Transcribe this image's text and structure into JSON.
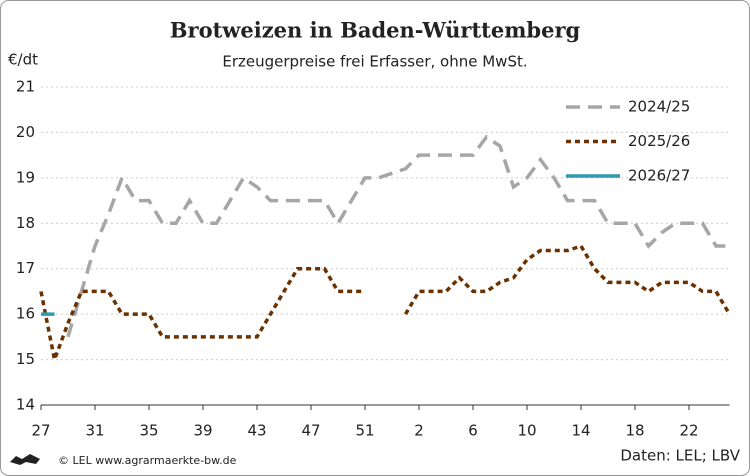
{
  "chart_data": {
    "type": "line",
    "title": "Brotweizen in Baden-Württemberg",
    "subtitle": "Erzeugerpreise frei Erfasser, ohne MwSt.",
    "y_label": "€/dt",
    "source": "Daten: LEL; LBV",
    "credit": "© LEL www.agrarmaerkte-bw.de",
    "categories": [
      "27",
      null,
      null,
      null,
      "31",
      null,
      null,
      null,
      "35",
      null,
      null,
      null,
      "39",
      null,
      null,
      null,
      "43",
      null,
      null,
      null,
      "47",
      null,
      null,
      null,
      "51",
      null,
      null,
      null,
      "2",
      null,
      null,
      null,
      "6",
      null,
      null,
      null,
      "10",
      null,
      null,
      null,
      "14",
      null,
      null,
      null,
      "18",
      null,
      null,
      null,
      "22",
      null,
      null,
      null
    ],
    "series": [
      {
        "name": "2024/25",
        "color": "#a6a6a6",
        "dash": "long",
        "values": [
          null,
          null,
          15.5,
          16.5,
          17.5,
          18.2,
          19.0,
          18.5,
          18.5,
          18.0,
          18.0,
          18.5,
          18.0,
          18.0,
          18.5,
          19.0,
          18.8,
          18.5,
          18.5,
          18.5,
          18.5,
          18.5,
          18.0,
          18.5,
          19.0,
          19.0,
          19.1,
          19.2,
          19.5,
          19.5,
          19.5,
          19.5,
          19.5,
          19.9,
          19.7,
          18.8,
          19.0,
          19.4,
          19.0,
          18.5,
          18.5,
          18.5,
          18.0,
          18.0,
          18.0,
          17.5,
          17.8,
          18.0,
          18.0,
          18.0,
          17.5,
          17.5
        ]
      },
      {
        "name": "2025/26",
        "color": "#6b3100",
        "dash": "dot",
        "values": [
          16.5,
          15.0,
          15.8,
          16.5,
          16.5,
          16.5,
          16.0,
          16.0,
          16.0,
          15.5,
          15.5,
          15.5,
          15.5,
          15.5,
          15.5,
          15.5,
          15.5,
          16.0,
          16.5,
          17.0,
          17.0,
          17.0,
          16.5,
          16.5,
          16.5,
          null,
          null,
          16.0,
          16.5,
          16.5,
          16.5,
          16.8,
          16.5,
          16.5,
          16.7,
          16.8,
          17.2,
          17.4,
          17.4,
          17.4,
          17.5,
          17.0,
          16.7,
          16.7,
          16.7,
          16.5,
          16.7,
          16.7,
          16.7,
          16.5,
          16.5,
          16.0
        ]
      },
      {
        "name": "2026/27",
        "color": "#2e9bb0",
        "dash": "solid",
        "values": [
          16.0,
          16.0,
          null,
          null,
          null,
          null,
          null,
          null,
          null,
          null,
          null,
          null,
          null,
          null,
          null,
          null,
          null,
          null,
          null,
          null,
          null,
          null,
          null,
          null,
          null,
          null,
          null,
          null,
          null,
          null,
          null,
          null,
          null,
          null,
          null,
          null,
          null,
          null,
          null,
          null,
          null,
          null,
          null,
          null,
          null,
          null,
          null,
          null,
          null,
          null,
          null,
          null
        ]
      }
    ],
    "ylim": [
      14,
      21
    ],
    "yticks": [
      14,
      15,
      16,
      17,
      18,
      19,
      20,
      21
    ],
    "grid": true
  }
}
